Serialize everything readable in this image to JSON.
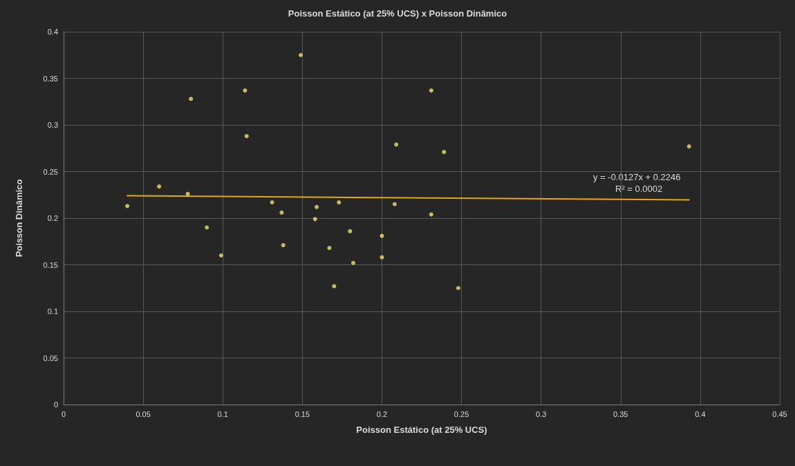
{
  "chart_data": {
    "type": "scatter",
    "title": "Poisson Estático (at 25% UCS) x Poisson Dinâmico",
    "xlabel": "Poisson Estático (at 25% UCS)",
    "ylabel": "Poisson Dinâmico",
    "series": [
      {
        "color": "#eee36a",
        "marker": "circle",
        "x": [
          0.04,
          0.06,
          0.078,
          0.08,
          0.09,
          0.099,
          0.114,
          0.115,
          0.131,
          0.137,
          0.138,
          0.149,
          0.158,
          0.159,
          0.167,
          0.17,
          0.173,
          0.18,
          0.182,
          0.2,
          0.2,
          0.208,
          0.209,
          0.231,
          0.231,
          0.239,
          0.248,
          0.393
        ],
        "values": [
          0.213,
          0.234,
          0.226,
          0.328,
          0.19,
          0.16,
          0.337,
          0.288,
          0.217,
          0.206,
          0.171,
          0.375,
          0.199,
          0.212,
          0.168,
          0.127,
          0.217,
          0.186,
          0.152,
          0.181,
          0.158,
          0.215,
          0.279,
          0.337,
          0.204,
          0.271,
          0.125,
          0.277
        ]
      },
      {
        "type": "line",
        "color": "#e6a817",
        "marker": "none",
        "line_style": "solid",
        "x": [
          0.04,
          0.393
        ],
        "values": [
          0.2241,
          0.2196
        ]
      }
    ],
    "annotations": [
      "y = -0.0127x + 0.2246",
      "R² = 0.0002"
    ],
    "xlim": [
      0,
      0.45
    ],
    "xticks": [
      0,
      0.05,
      0.1,
      0.15,
      0.2,
      0.25,
      0.3,
      0.35,
      0.4,
      0.45
    ],
    "ylim": [
      0,
      0.4
    ],
    "yticks": [
      0,
      0.05,
      0.1,
      0.15,
      0.2,
      0.25,
      0.3,
      0.35,
      0.4
    ],
    "grid": true
  }
}
